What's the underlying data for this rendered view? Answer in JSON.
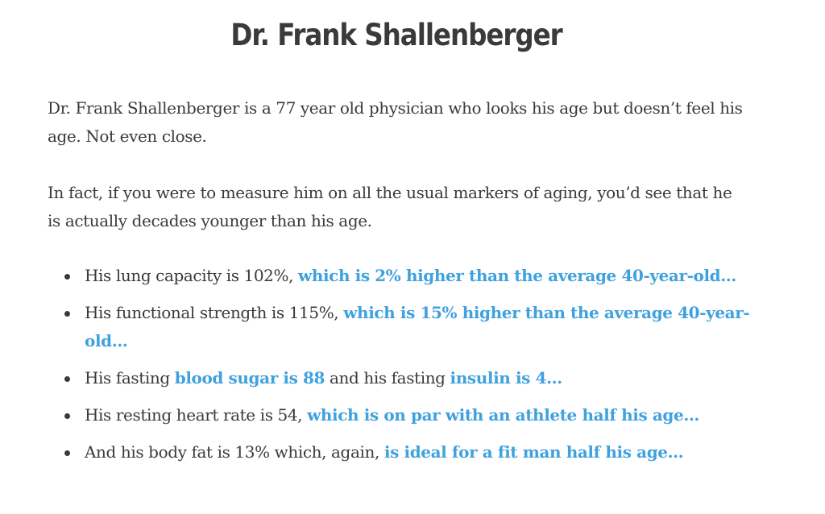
{
  "title": "Dr. Frank Shallenberger",
  "paragraphs": [
    "Dr. Frank Shallenberger is a 77 year old physician who looks his age but doesn’t feel his age. Not even close.",
    "In fact, if you were to measure him on all the usual markers of aging, you’d see that he is actually decades younger than his age."
  ],
  "facts": [
    {
      "plain1": "His lung capacity is 102%, ",
      "highlight1": "which is 2% higher than the average 40-year-old…",
      "plain2": "",
      "highlight2": ""
    },
    {
      "plain1": "His functional strength is 115%, ",
      "highlight1": "which is 15% higher than the average 40-year-old…",
      "plain2": "",
      "highlight2": ""
    },
    {
      "plain1": "His fasting ",
      "highlight1": "blood sugar is 88",
      "plain2": " and his fasting ",
      "highlight2": "insulin is 4…"
    },
    {
      "plain1": "His resting heart rate is 54, ",
      "highlight1": "which is on par with an athlete half his age…",
      "plain2": "",
      "highlight2": ""
    },
    {
      "plain1": "And his body fat is 13% which, again, ",
      "highlight1": "is ideal for a fit man half his age…",
      "plain2": "",
      "highlight2": ""
    }
  ],
  "colors": {
    "text": "#3a3a3a",
    "highlight": "#3fa1de",
    "background": "#ffffff"
  }
}
